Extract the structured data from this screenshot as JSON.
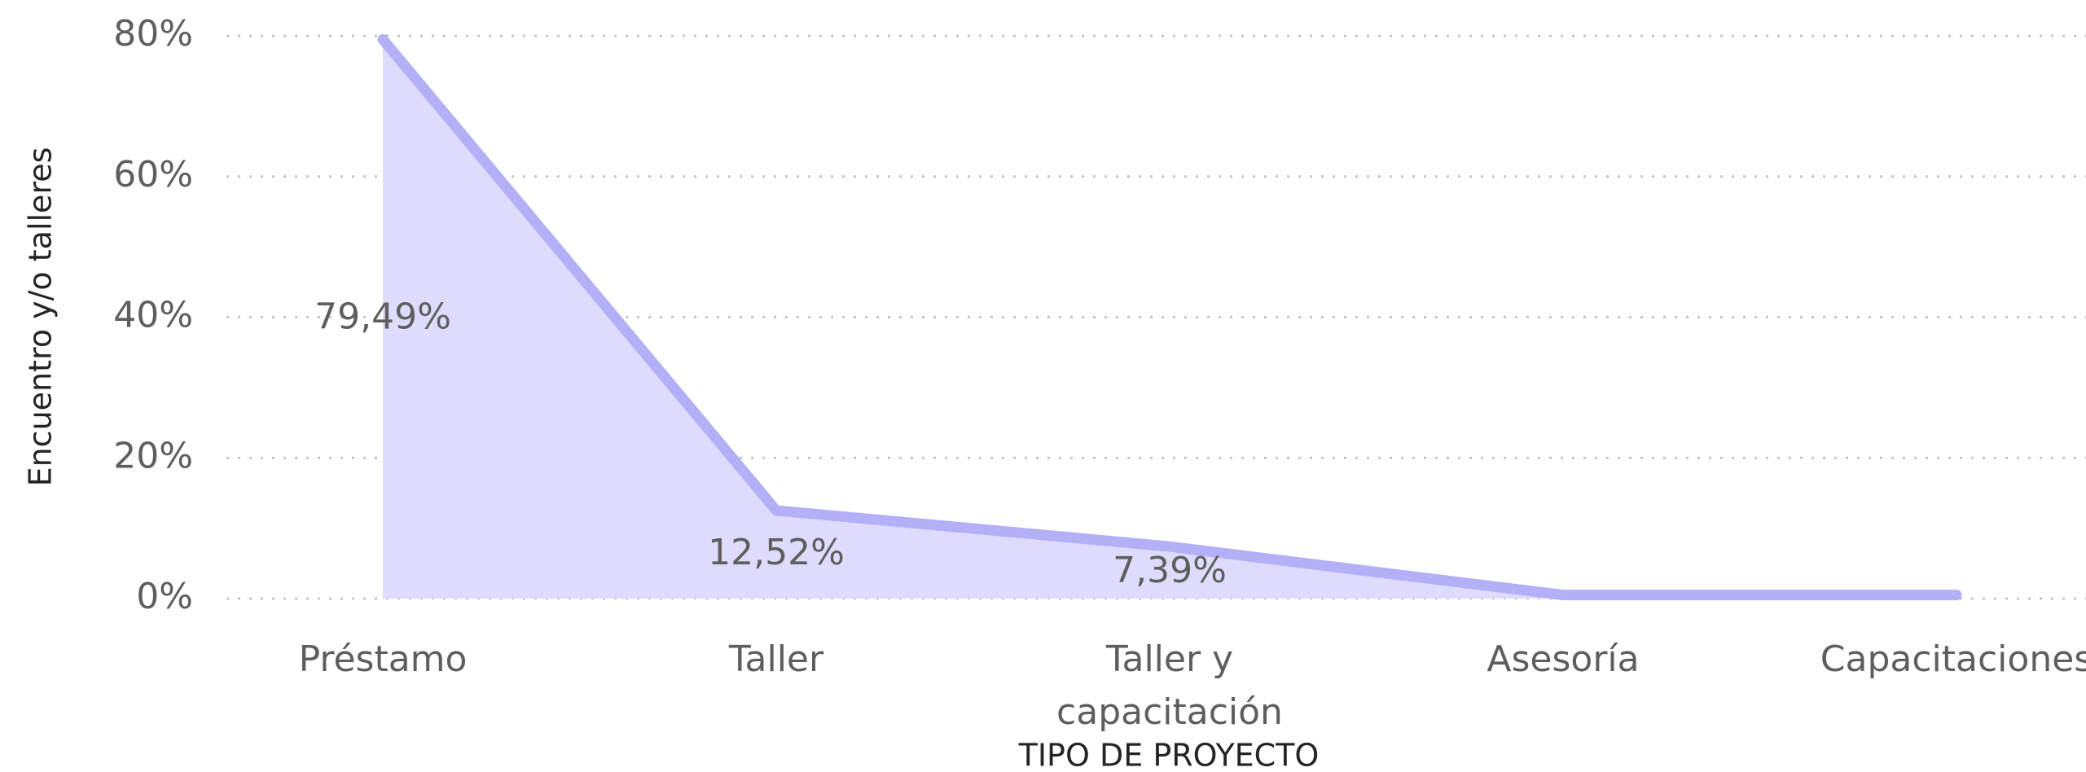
{
  "chart_data": {
    "type": "area",
    "x_label": "TIPO DE PROYECTO",
    "y_label": "Encuentro y/o talleres",
    "categories": [
      "Préstamo",
      "Taller",
      "Taller y capacitación",
      "Asesoría",
      "Capacitaciones"
    ],
    "values": [
      79.49,
      12.52,
      7.39,
      0.5,
      0.5
    ],
    "value_labels": [
      "79,49%",
      "12,52%",
      "7,39%",
      null,
      null
    ],
    "color": "#b4b0f7",
    "fill_color": "#dedcfd",
    "ylim": [
      0,
      80
    ],
    "yticks": [
      {
        "value": 0,
        "label": "0%"
      },
      {
        "value": 20,
        "label": "20%"
      },
      {
        "value": 40,
        "label": "40%"
      },
      {
        "value": 60,
        "label": "60%"
      },
      {
        "value": 80,
        "label": "80%"
      }
    ],
    "grid": true
  }
}
